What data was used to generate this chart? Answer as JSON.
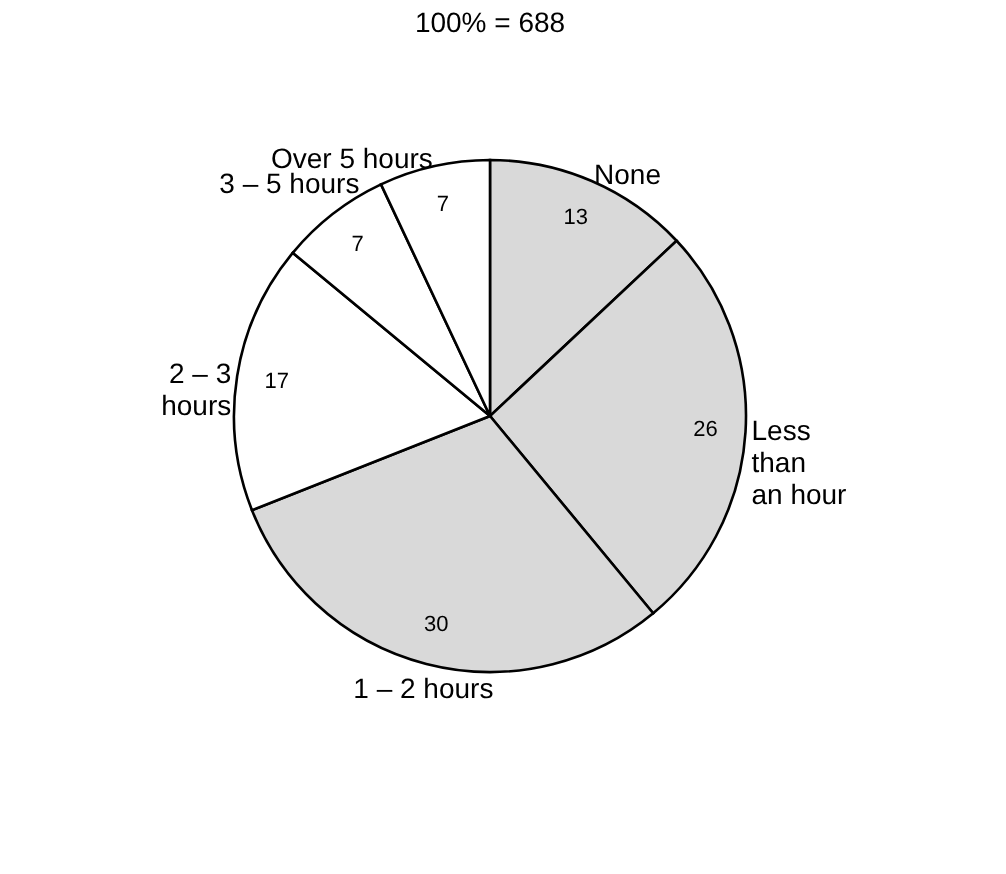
{
  "chart_data": {
    "type": "pie",
    "title": "100% = 688",
    "categories": [
      "None",
      "Less\nthan\nan hour",
      "1 – 2 hours",
      "2 – 3\nhours",
      "3 – 5 hours",
      "Over 5 hours"
    ],
    "values": [
      13,
      26,
      30,
      17,
      7,
      7
    ],
    "colors": [
      "#d9d9d9",
      "#d9d9d9",
      "#d9d9d9",
      "#ffffff",
      "#ffffff",
      "#ffffff"
    ],
    "data_labels": true
  }
}
